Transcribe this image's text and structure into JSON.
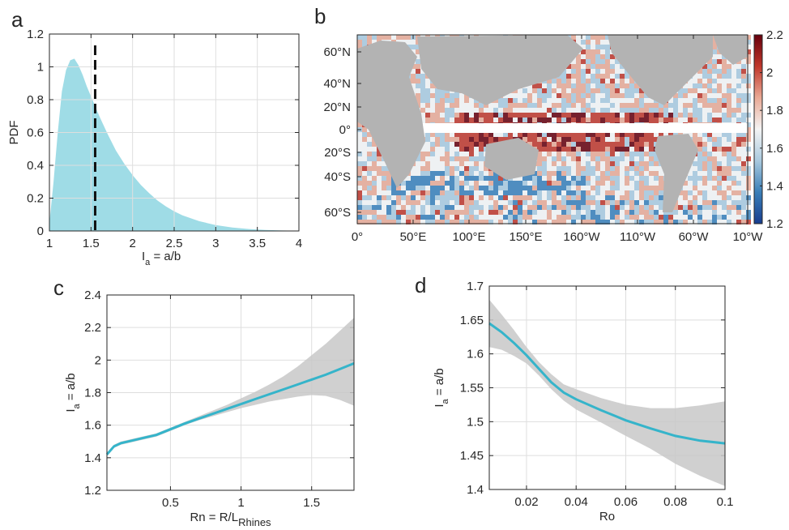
{
  "chart_data": [
    {
      "panel": "a",
      "type": "area",
      "xlabel": "I",
      "xlabel_sub": "a",
      "xlabel_rest": " = a/b",
      "ylabel": "PDF",
      "xlim": [
        1,
        4
      ],
      "ylim": [
        0,
        1.2
      ],
      "xticks": [
        "1",
        "1.5",
        "2",
        "2.5",
        "3",
        "3.5",
        "4"
      ],
      "yticks": [
        "0",
        "0.2",
        "0.4",
        "0.6",
        "0.8",
        "1",
        "1.2"
      ],
      "grid": true,
      "color": "#7fd0dd",
      "x": [
        1.0,
        1.05,
        1.1,
        1.15,
        1.2,
        1.25,
        1.3,
        1.35,
        1.4,
        1.45,
        1.5,
        1.55,
        1.6,
        1.7,
        1.8,
        1.9,
        2.0,
        2.1,
        2.2,
        2.3,
        2.4,
        2.5,
        2.6,
        2.8,
        3.0,
        3.2,
        3.4,
        3.6,
        3.8,
        4.0
      ],
      "y": [
        0.05,
        0.3,
        0.6,
        0.85,
        0.98,
        1.04,
        1.05,
        1.01,
        0.95,
        0.88,
        0.82,
        0.76,
        0.7,
        0.59,
        0.49,
        0.41,
        0.34,
        0.28,
        0.23,
        0.185,
        0.15,
        0.12,
        0.095,
        0.06,
        0.036,
        0.021,
        0.012,
        0.006,
        0.003,
        0.001
      ],
      "median_line_x": 1.55
    },
    {
      "panel": "b",
      "type": "heatmap",
      "xticks": [
        "0°",
        "50°E",
        "100°E",
        "150°E",
        "160°W",
        "110°W",
        "60°W",
        "10°W"
      ],
      "yticks": [
        "60°N",
        "40°N",
        "20°N",
        "0°",
        "20°S",
        "40°S",
        "60°S"
      ],
      "colorbar_ticks": [
        "2.2",
        "2",
        "1.8",
        "1.6",
        "1.4",
        "1.2"
      ],
      "clim": [
        1.2,
        2.2
      ],
      "colormap": [
        "#173d8f",
        "#3a7fb8",
        "#a9c9de",
        "#f4f4f4",
        "#e9a995",
        "#c0372b",
        "#67000d"
      ],
      "land_color": "#b3b3b3"
    },
    {
      "panel": "c",
      "type": "line",
      "xlabel": "Rn = R/L",
      "xlabel_sub": "Rhines",
      "ylabel": "I",
      "ylabel_sub": "a",
      "ylabel_rest": " = a/b",
      "xlim": [
        0.05,
        1.8
      ],
      "ylim": [
        1.2,
        2.4
      ],
      "xticks": [
        "0.5",
        "1",
        "1.5"
      ],
      "yticks": [
        "1.2",
        "1.4",
        "1.6",
        "1.8",
        "2",
        "2.2",
        "2.4"
      ],
      "grid": true,
      "color": "#35b4ca",
      "x": [
        0.05,
        0.1,
        0.15,
        0.2,
        0.3,
        0.4,
        0.5,
        0.6,
        0.7,
        0.8,
        0.9,
        1.0,
        1.1,
        1.2,
        1.3,
        1.4,
        1.5,
        1.6,
        1.7,
        1.8
      ],
      "y": [
        1.42,
        1.47,
        1.49,
        1.5,
        1.52,
        1.54,
        1.575,
        1.61,
        1.64,
        1.67,
        1.7,
        1.73,
        1.76,
        1.79,
        1.82,
        1.85,
        1.88,
        1.91,
        1.945,
        1.98
      ],
      "upper": [
        1.43,
        1.48,
        1.5,
        1.51,
        1.53,
        1.55,
        1.585,
        1.62,
        1.655,
        1.69,
        1.725,
        1.765,
        1.805,
        1.85,
        1.9,
        1.96,
        2.03,
        2.1,
        2.18,
        2.26
      ],
      "lower": [
        1.41,
        1.46,
        1.48,
        1.49,
        1.51,
        1.53,
        1.565,
        1.6,
        1.63,
        1.655,
        1.68,
        1.705,
        1.725,
        1.745,
        1.76,
        1.775,
        1.785,
        1.78,
        1.755,
        1.72
      ]
    },
    {
      "panel": "d",
      "type": "line",
      "xlabel": "Ro",
      "ylabel": "I",
      "ylabel_sub": "a",
      "ylabel_rest": " = a/b",
      "xlim": [
        0.005,
        0.1
      ],
      "ylim": [
        1.4,
        1.7
      ],
      "xticks": [
        "0.02",
        "0.04",
        "0.06",
        "0.08",
        "0.1"
      ],
      "yticks": [
        "1.4",
        "1.45",
        "1.5",
        "1.55",
        "1.6",
        "1.65",
        "1.7"
      ],
      "grid": true,
      "color": "#35b4ca",
      "x": [
        0.005,
        0.01,
        0.015,
        0.02,
        0.025,
        0.03,
        0.035,
        0.04,
        0.05,
        0.06,
        0.07,
        0.08,
        0.09,
        0.1
      ],
      "y": [
        1.645,
        1.632,
        1.616,
        1.598,
        1.578,
        1.558,
        1.543,
        1.533,
        1.517,
        1.502,
        1.49,
        1.479,
        1.472,
        1.468
      ],
      "upper": [
        1.68,
        1.658,
        1.635,
        1.61,
        1.588,
        1.57,
        1.555,
        1.548,
        1.535,
        1.525,
        1.52,
        1.52,
        1.524,
        1.53
      ],
      "lower": [
        1.61,
        1.606,
        1.597,
        1.586,
        1.568,
        1.548,
        1.531,
        1.518,
        1.499,
        1.479,
        1.46,
        1.438,
        1.42,
        1.405
      ]
    }
  ],
  "panel_labels": [
    "a",
    "b",
    "c",
    "d"
  ]
}
